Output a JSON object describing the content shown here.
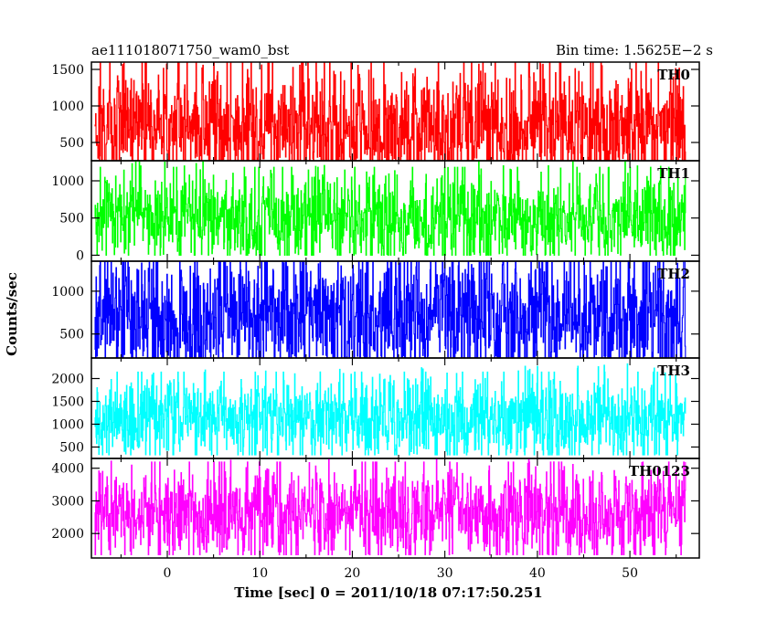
{
  "header": {
    "title": "ae111018071750_wam0_bst",
    "bin_time": "Bin time: 1.5625E−2 s"
  },
  "chart_data": {
    "type": "line",
    "xlabel": "Time [sec] 0 = 2011/10/18 07:17:50.251",
    "ylabel": "Counts/sec",
    "xlim": [
      -8.2,
      57.5
    ],
    "x_ticks": [
      0,
      10,
      20,
      30,
      40,
      50
    ],
    "x_range": [
      -7.8,
      56.0
    ],
    "grid": false,
    "panels": [
      {
        "name": "TH0",
        "color": "#ff0000",
        "ylim": [
          250,
          1600
        ],
        "y_ticks": [
          500,
          1000,
          1500
        ],
        "baseline": [
          250,
          250
        ],
        "center": 720,
        "spread": 400,
        "min": 250,
        "max": 1600
      },
      {
        "name": "TH1",
        "color": "#00ff00",
        "ylim": [
          -80,
          1270
        ],
        "y_ticks": [
          0,
          500,
          1000
        ],
        "baseline": [
          10,
          10
        ],
        "center": 500,
        "spread": 310,
        "min": 0,
        "max": 1270
      },
      {
        "name": "TH2",
        "color": "#0000ff",
        "ylim": [
          220,
          1350
        ],
        "y_ticks": [
          500,
          1000
        ],
        "baseline": [
          240,
          240
        ],
        "center": 700,
        "spread": 400,
        "min": 220,
        "max": 1350
      },
      {
        "name": "TH3",
        "color": "#00ffff",
        "ylim": [
          250,
          2450
        ],
        "y_ticks": [
          500,
          1000,
          1500,
          2000
        ],
        "baseline": [
          330,
          330
        ],
        "center": 1150,
        "spread": 450,
        "min": 330,
        "max": 2450
      },
      {
        "name": "TH0123",
        "color": "#ff00ff",
        "ylim": [
          1250,
          4300
        ],
        "y_ticks": [
          2000,
          3000,
          4000
        ],
        "baseline": [
          1400,
          1400
        ],
        "center": 2650,
        "spread": 700,
        "min": 1350,
        "max": 4300
      }
    ]
  }
}
